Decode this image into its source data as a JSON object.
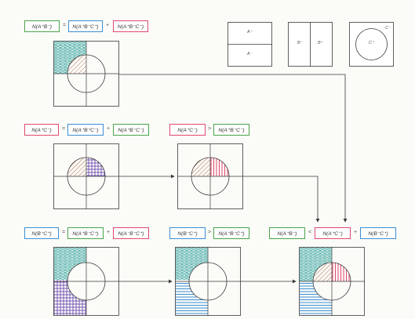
{
  "formulas": {
    "row1": {
      "lhs": "N(A⁺B⁻)",
      "op1": "=",
      "t1": "N(A⁺B⁻C⁺)",
      "op2": "+",
      "t2": "N(A⁺B⁻C⁻)"
    },
    "row2a": {
      "lhs": "N(A⁺C⁻)",
      "op1": "=",
      "t1": "N(A⁺B⁺C⁻)",
      "op2": "+",
      "t2": "N(A⁺B⁻C⁻)"
    },
    "row2b": {
      "lhs": "N(A⁺C⁻)",
      "op1": ">",
      "t1": "N(A⁺B⁻C⁻)"
    },
    "row3a": {
      "lhs": "N(B⁻C⁺)",
      "op1": "=",
      "t1": "N(A⁺B⁻C⁺)",
      "op2": "+",
      "t2": "N(A⁻B⁻C⁺)"
    },
    "row3b": {
      "lhs": "N(B⁻C⁺)",
      "op1": ">",
      "t1": "N(A⁺B⁻C⁺)"
    },
    "row3c": {
      "lhs": "N(A⁺B⁻)",
      "op1": "<",
      "t1": "N(A⁺C⁻)",
      "op2": "+",
      "t2": "N(B⁻C⁺)"
    }
  },
  "legend": {
    "a_top": "A⁺",
    "a_bottom": "A⁻",
    "b_left": "B⁻",
    "b_right": "B⁺",
    "c_outer": "C⁻",
    "c_inner": "C⁺"
  },
  "colors": {
    "green": "#4aa34a",
    "blue": "#3b8fd6",
    "red": "#e04a6e",
    "teal": "#3aa6a0",
    "brown": "#b06a4a",
    "purple": "#6a4ab0",
    "stroke": "#3a3a3a"
  }
}
